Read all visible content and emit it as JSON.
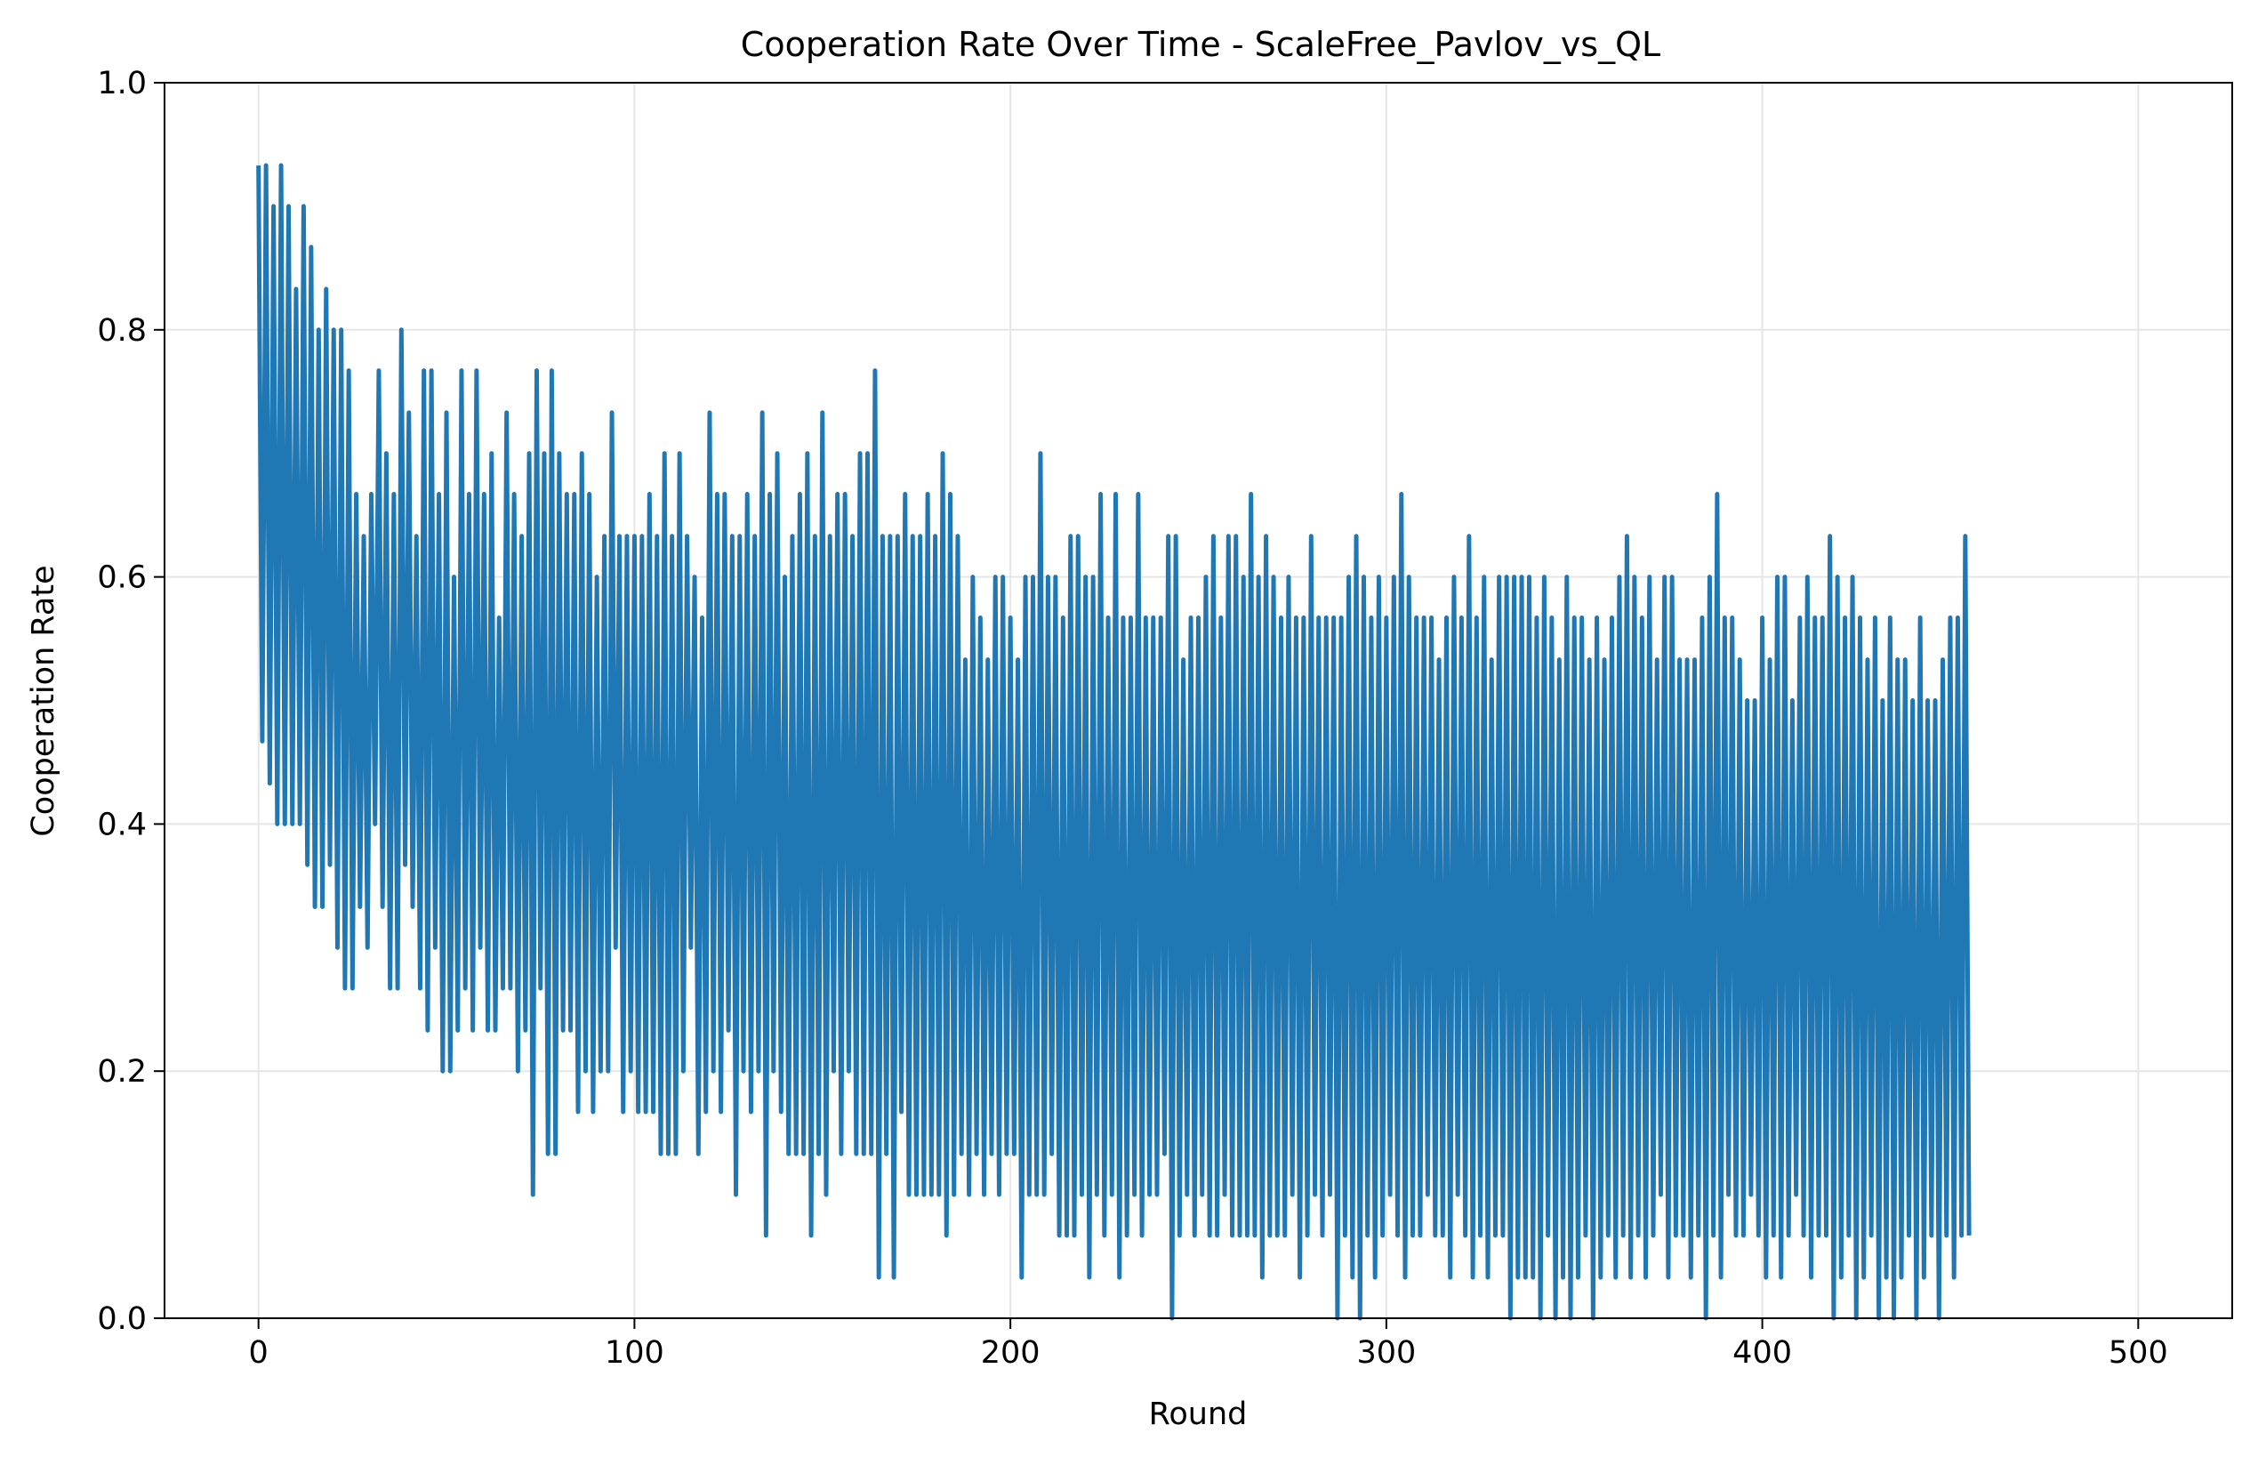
{
  "chart_data": {
    "type": "line",
    "title": "Cooperation Rate Over Time - ScaleFree_Pavlov_vs_QL",
    "xlabel": "Round",
    "ylabel": "Cooperation Rate",
    "xlim": [
      -25,
      525
    ],
    "ylim": [
      0.0,
      1.0
    ],
    "xticks": [
      0,
      100,
      200,
      300,
      400,
      500
    ],
    "xtick_labels": [
      "0",
      "100",
      "200",
      "300",
      "400",
      "500"
    ],
    "yticks": [
      0.0,
      0.2,
      0.4,
      0.6,
      0.8,
      1.0
    ],
    "ytick_labels": [
      "0.0",
      "0.2",
      "0.4",
      "0.6",
      "0.8",
      "1.0"
    ],
    "grid": true,
    "legend": "none",
    "series": [
      {
        "color": "#1f77b4",
        "x_start": 0,
        "x_step": 1,
        "values": [
          0.933,
          0.467,
          0.933,
          0.433,
          0.9,
          0.4,
          0.933,
          0.4,
          0.9,
          0.4,
          0.833,
          0.4,
          0.9,
          0.367,
          0.867,
          0.333,
          0.8,
          0.333,
          0.833,
          0.367,
          0.8,
          0.3,
          0.8,
          0.267,
          0.767,
          0.267,
          0.667,
          0.333,
          0.633,
          0.3,
          0.667,
          0.4,
          0.767,
          0.333,
          0.7,
          0.267,
          0.667,
          0.267,
          0.8,
          0.367,
          0.733,
          0.333,
          0.633,
          0.267,
          0.767,
          0.233,
          0.767,
          0.3,
          0.667,
          0.2,
          0.733,
          0.2,
          0.6,
          0.233,
          0.767,
          0.267,
          0.667,
          0.233,
          0.767,
          0.3,
          0.667,
          0.233,
          0.7,
          0.233,
          0.567,
          0.267,
          0.733,
          0.267,
          0.667,
          0.2,
          0.633,
          0.233,
          0.7,
          0.1,
          0.767,
          0.267,
          0.7,
          0.133,
          0.767,
          0.133,
          0.7,
          0.233,
          0.667,
          0.233,
          0.667,
          0.167,
          0.7,
          0.2,
          0.667,
          0.167,
          0.6,
          0.2,
          0.633,
          0.2,
          0.733,
          0.3,
          0.633,
          0.167,
          0.633,
          0.2,
          0.633,
          0.167,
          0.633,
          0.167,
          0.667,
          0.167,
          0.633,
          0.133,
          0.7,
          0.133,
          0.633,
          0.133,
          0.7,
          0.2,
          0.633,
          0.3,
          0.6,
          0.133,
          0.567,
          0.167,
          0.733,
          0.2,
          0.667,
          0.167,
          0.667,
          0.233,
          0.633,
          0.1,
          0.633,
          0.2,
          0.667,
          0.167,
          0.633,
          0.2,
          0.733,
          0.067,
          0.667,
          0.2,
          0.7,
          0.167,
          0.6,
          0.133,
          0.633,
          0.133,
          0.667,
          0.133,
          0.7,
          0.067,
          0.633,
          0.133,
          0.733,
          0.1,
          0.633,
          0.2,
          0.667,
          0.133,
          0.667,
          0.2,
          0.633,
          0.133,
          0.7,
          0.133,
          0.7,
          0.133,
          0.767,
          0.033,
          0.633,
          0.133,
          0.633,
          0.033,
          0.633,
          0.167,
          0.667,
          0.1,
          0.633,
          0.1,
          0.633,
          0.1,
          0.667,
          0.1,
          0.633,
          0.1,
          0.7,
          0.067,
          0.667,
          0.1,
          0.633,
          0.133,
          0.533,
          0.1,
          0.6,
          0.133,
          0.567,
          0.1,
          0.533,
          0.133,
          0.6,
          0.1,
          0.6,
          0.133,
          0.567,
          0.133,
          0.533,
          0.033,
          0.6,
          0.1,
          0.6,
          0.1,
          0.7,
          0.1,
          0.6,
          0.133,
          0.6,
          0.067,
          0.567,
          0.067,
          0.633,
          0.067,
          0.633,
          0.1,
          0.6,
          0.033,
          0.6,
          0.1,
          0.667,
          0.067,
          0.567,
          0.1,
          0.667,
          0.033,
          0.567,
          0.067,
          0.567,
          0.1,
          0.667,
          0.067,
          0.567,
          0.1,
          0.567,
          0.1,
          0.567,
          0.133,
          0.633,
          0.0,
          0.633,
          0.067,
          0.533,
          0.1,
          0.567,
          0.067,
          0.567,
          0.1,
          0.6,
          0.067,
          0.633,
          0.067,
          0.567,
          0.1,
          0.633,
          0.067,
          0.633,
          0.067,
          0.6,
          0.067,
          0.667,
          0.067,
          0.6,
          0.033,
          0.633,
          0.067,
          0.6,
          0.067,
          0.567,
          0.067,
          0.6,
          0.1,
          0.567,
          0.033,
          0.567,
          0.067,
          0.633,
          0.1,
          0.567,
          0.067,
          0.567,
          0.1,
          0.567,
          0.0,
          0.567,
          0.067,
          0.6,
          0.033,
          0.633,
          0.0,
          0.6,
          0.067,
          0.567,
          0.033,
          0.6,
          0.067,
          0.567,
          0.1,
          0.6,
          0.067,
          0.667,
          0.033,
          0.6,
          0.067,
          0.567,
          0.067,
          0.567,
          0.1,
          0.567,
          0.067,
          0.533,
          0.067,
          0.567,
          0.033,
          0.6,
          0.1,
          0.567,
          0.067,
          0.633,
          0.033,
          0.567,
          0.067,
          0.6,
          0.033,
          0.533,
          0.067,
          0.6,
          0.067,
          0.6,
          0.0,
          0.6,
          0.033,
          0.6,
          0.033,
          0.6,
          0.033,
          0.567,
          0.0,
          0.6,
          0.067,
          0.567,
          0.0,
          0.533,
          0.033,
          0.6,
          0.0,
          0.567,
          0.033,
          0.567,
          0.067,
          0.533,
          0.0,
          0.567,
          0.033,
          0.533,
          0.067,
          0.567,
          0.033,
          0.6,
          0.067,
          0.633,
          0.033,
          0.6,
          0.067,
          0.567,
          0.033,
          0.6,
          0.067,
          0.533,
          0.1,
          0.6,
          0.033,
          0.6,
          0.067,
          0.533,
          0.067,
          0.533,
          0.033,
          0.533,
          0.067,
          0.567,
          0.0,
          0.6,
          0.067,
          0.667,
          0.033,
          0.567,
          0.1,
          0.567,
          0.067,
          0.533,
          0.067,
          0.5,
          0.1,
          0.5,
          0.067,
          0.567,
          0.033,
          0.533,
          0.067,
          0.6,
          0.033,
          0.6,
          0.067,
          0.5,
          0.1,
          0.567,
          0.067,
          0.6,
          0.033,
          0.567,
          0.067,
          0.567,
          0.067,
          0.633,
          0.0,
          0.6,
          0.033,
          0.567,
          0.067,
          0.6,
          0.0,
          0.567,
          0.033,
          0.533,
          0.067,
          0.567,
          0.0,
          0.5,
          0.033,
          0.567,
          0.0,
          0.533,
          0.033,
          0.533,
          0.067,
          0.5,
          0.0,
          0.567,
          0.033,
          0.5,
          0.067,
          0.5,
          0.0,
          0.533,
          0.067,
          0.567,
          0.033,
          0.567,
          0.067,
          0.633,
          0.067
        ]
      }
    ]
  }
}
